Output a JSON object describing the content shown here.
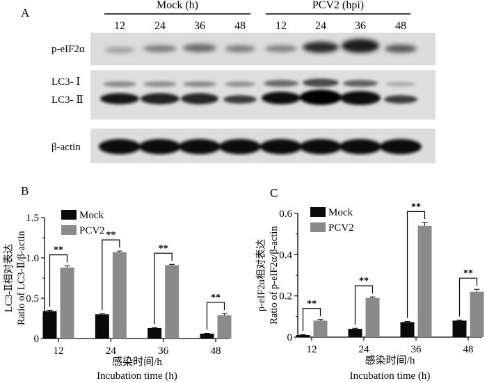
{
  "panel_letters": {
    "a": "A",
    "b": "B",
    "c": "C"
  },
  "blot": {
    "mock_header": "Mock (h)",
    "pcv2_header": "PCV2 (hpi)",
    "lanes": [
      "12",
      "24",
      "36",
      "48",
      "12",
      "24",
      "36",
      "48"
    ],
    "rows": [
      "p-eIF2α",
      "LC3- Ⅰ",
      "LC3- Ⅱ",
      "β-actin"
    ]
  },
  "colors": {
    "mock": "#0a0a0a",
    "pcv2": "#8a8a8a",
    "blot_bg": "#dedede"
  },
  "chart_data": [
    {
      "type": "bar",
      "panel": "B",
      "categories": [
        "12",
        "24",
        "36",
        "48"
      ],
      "series": [
        {
          "name": "Mock",
          "values": [
            0.34,
            0.3,
            0.13,
            0.06
          ],
          "errors": [
            0.01,
            0.01,
            0.005,
            0.005
          ]
        },
        {
          "name": "PCV2",
          "values": [
            0.88,
            1.07,
            0.91,
            0.29
          ],
          "errors": [
            0.02,
            0.015,
            0.01,
            0.02
          ]
        }
      ],
      "significance": [
        "**",
        "**",
        "**",
        "**"
      ],
      "ylim": [
        0,
        1.5
      ],
      "yticks": [
        "0",
        "0.5",
        "1.0",
        "1.5"
      ],
      "ylabel_cn": "LC3-Ⅱ相对表达",
      "ylabel_en": "Ratio of LC3-Ⅱ/β-actin",
      "xlabel_cn": "感染时间/h",
      "xlabel_en": "Incubation time (h)",
      "legend_position": "top-left"
    },
    {
      "type": "bar",
      "panel": "C",
      "categories": [
        "12",
        "24",
        "36",
        "48"
      ],
      "series": [
        {
          "name": "Mock",
          "values": [
            0.01,
            0.04,
            0.073,
            0.08
          ],
          "errors": [
            0.002,
            0.003,
            0.003,
            0.003
          ]
        },
        {
          "name": "PCV2",
          "values": [
            0.08,
            0.19,
            0.54,
            0.22
          ],
          "errors": [
            0.005,
            0.005,
            0.015,
            0.012
          ]
        }
      ],
      "significance": [
        "**",
        "**",
        "**",
        "**"
      ],
      "ylim": [
        0,
        0.6
      ],
      "yticks": [
        "0",
        "0.2",
        "0.4",
        "0.6"
      ],
      "ylabel_cn": "p-eIF2α相对表达",
      "ylabel_en": "Ratio of p-eIF2α/β-actin",
      "xlabel_cn": "感染时间/h",
      "xlabel_en": "Incubation time (h)",
      "legend_position": "top-left"
    }
  ]
}
